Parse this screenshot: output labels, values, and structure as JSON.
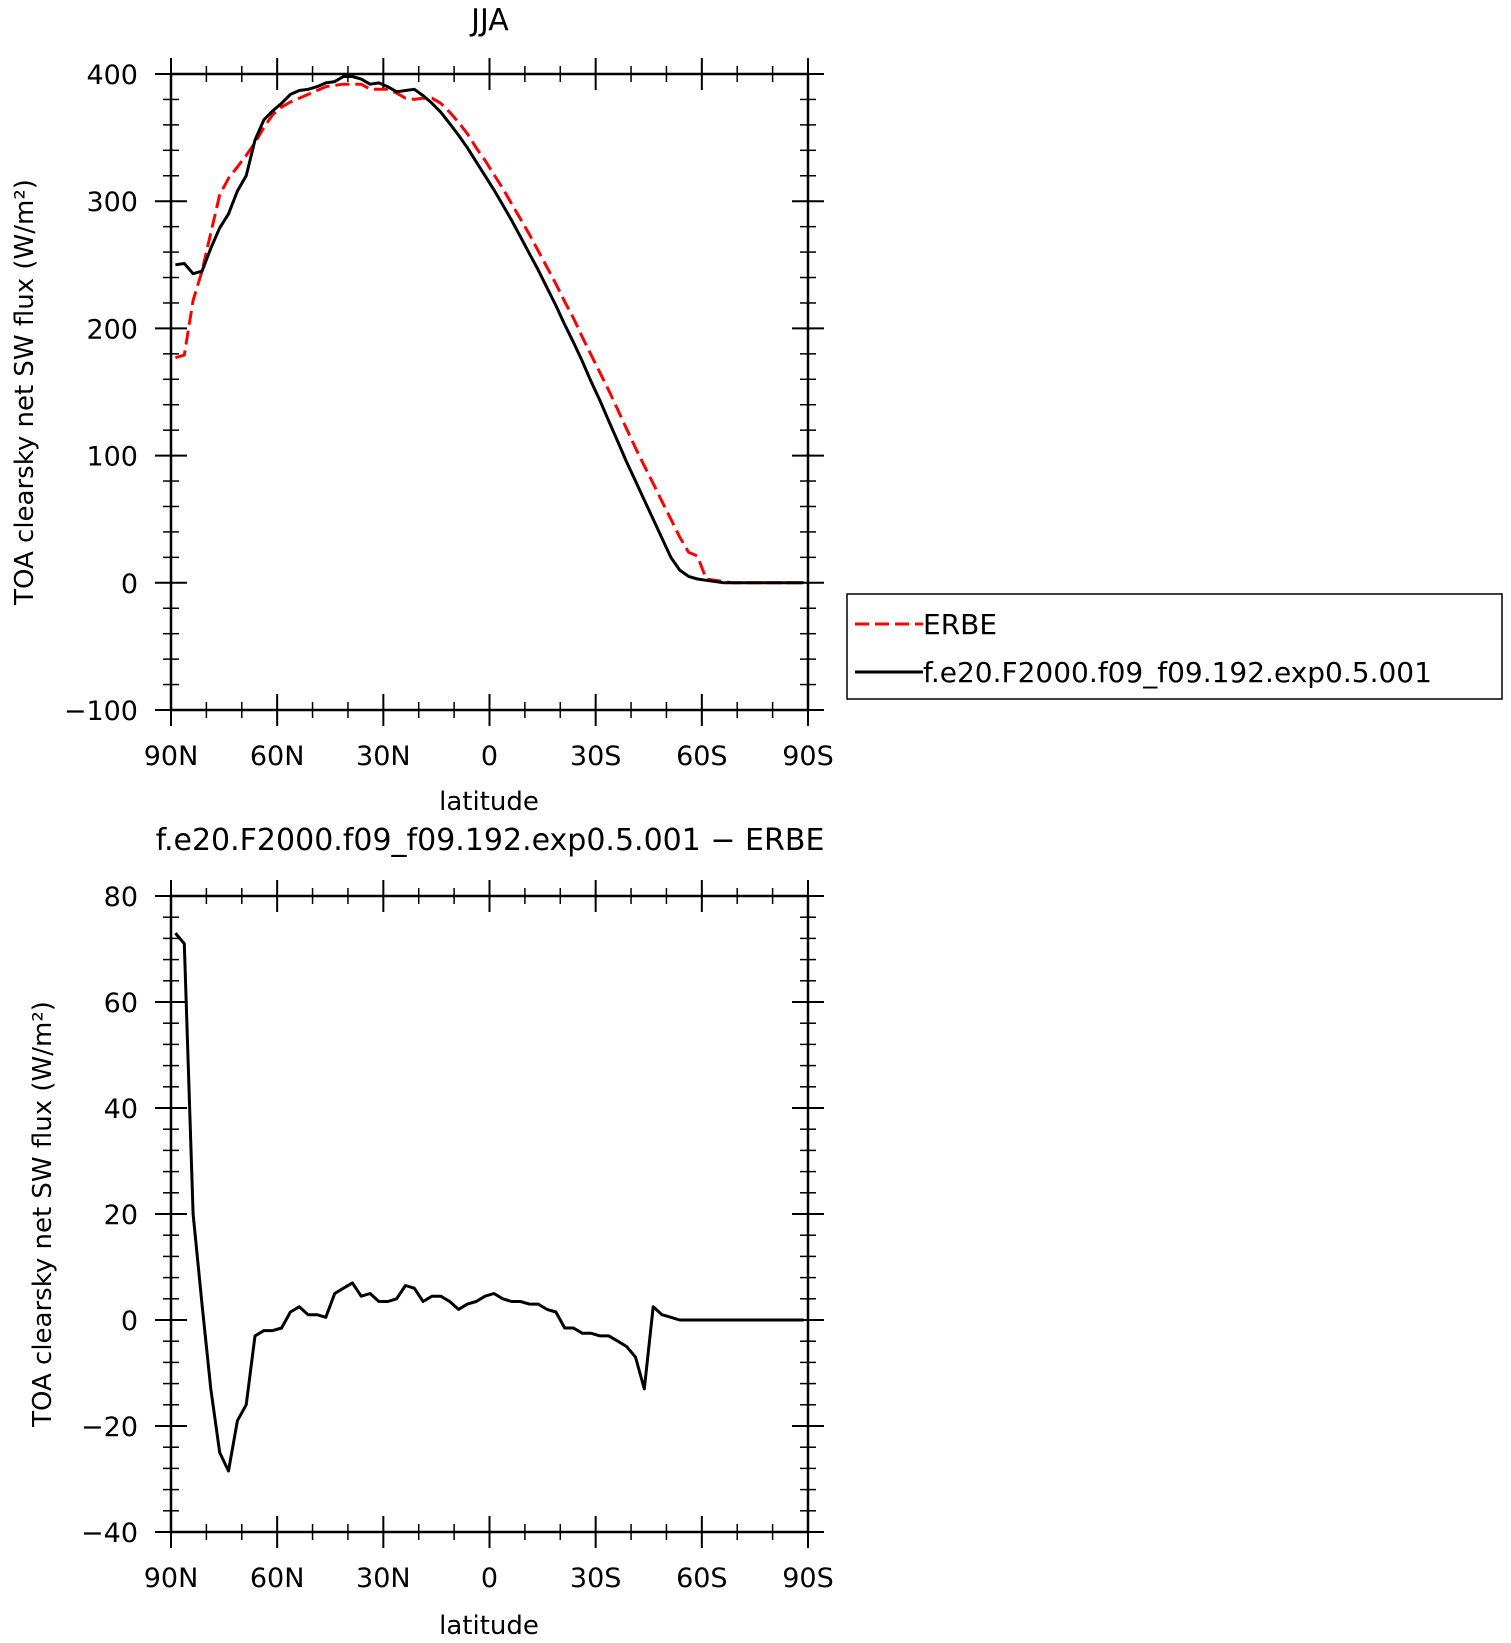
{
  "chart_data": [
    {
      "type": "line",
      "title": "JJA",
      "xlabel": "latitude",
      "ylabel": "TOA clearsky net SW flux (W/m²)",
      "xlim": [
        90,
        -90
      ],
      "ylim": [
        -100,
        400
      ],
      "xticks": [
        90,
        60,
        30,
        0,
        -30,
        -60,
        -90
      ],
      "xtick_labels": [
        "90N",
        "60N",
        "30N",
        "0",
        "30S",
        "60S",
        "90S"
      ],
      "yticks": [
        -100,
        0,
        100,
        200,
        300,
        400
      ],
      "ytick_labels": [
        "−100",
        "0",
        "100",
        "200",
        "300",
        "400"
      ],
      "legend": {
        "placement": "right",
        "entries": [
          "ERBE",
          "f.e20.F2000.f09_f09.192.exp0.5.001"
        ]
      },
      "series": [
        {
          "name": "ERBE",
          "color": "#ff0000",
          "style": "dashed",
          "x": [
            88.75,
            86.25,
            83.75,
            81.25,
            78.75,
            76.25,
            73.75,
            71.25,
            68.75,
            66.25,
            63.75,
            61.25,
            58.75,
            56.25,
            53.75,
            51.25,
            48.75,
            46.25,
            43.75,
            41.25,
            38.75,
            36.25,
            33.75,
            31.25,
            28.75,
            26.25,
            23.75,
            21.25,
            18.75,
            16.25,
            13.75,
            11.25,
            8.75,
            6.25,
            3.75,
            1.25,
            -1.25,
            -3.75,
            -6.25,
            -8.75,
            -11.25,
            -13.75,
            -16.25,
            -18.75,
            -21.25,
            -23.75,
            -26.25,
            -28.75,
            -31.25,
            -33.75,
            -36.25,
            -38.75,
            -41.25,
            -43.75,
            -46.25,
            -48.75,
            -51.25,
            -53.75,
            -56.25,
            -58.75,
            -61.25,
            -63.75,
            -66.25,
            -68.75,
            -71.25,
            -73.75,
            -76.25,
            -78.75,
            -81.25,
            -83.75,
            -86.25,
            -88.75
          ],
          "y": [
            177,
            179,
            222,
            245,
            275,
            305,
            318,
            327,
            336,
            346,
            358,
            368,
            374,
            378,
            381,
            384,
            387,
            390,
            391,
            392,
            392,
            392,
            388,
            388,
            388,
            385,
            381,
            380,
            381,
            381,
            377,
            370,
            362,
            353,
            342,
            332,
            321,
            310,
            298,
            286,
            274,
            261,
            248,
            235,
            221,
            208,
            193,
            179,
            165,
            151,
            136,
            121,
            106,
            92,
            78,
            64,
            50,
            36,
            24,
            21,
            3,
            2,
            1,
            0,
            0,
            0,
            0,
            0,
            0,
            0,
            0,
            0
          ]
        },
        {
          "name": "f.e20.F2000.f09_f09.192.exp0.5.001",
          "color": "#000000",
          "style": "solid",
          "x": [
            88.75,
            86.25,
            83.75,
            81.25,
            78.75,
            76.25,
            73.75,
            71.25,
            68.75,
            66.25,
            63.75,
            61.25,
            58.75,
            56.25,
            53.75,
            51.25,
            48.75,
            46.25,
            43.75,
            41.25,
            38.75,
            36.25,
            33.75,
            31.25,
            28.75,
            26.25,
            23.75,
            21.25,
            18.75,
            16.25,
            13.75,
            11.25,
            8.75,
            6.25,
            3.75,
            1.25,
            -1.25,
            -3.75,
            -6.25,
            -8.75,
            -11.25,
            -13.75,
            -16.25,
            -18.75,
            -21.25,
            -23.75,
            -26.25,
            -28.75,
            -31.25,
            -33.75,
            -36.25,
            -38.75,
            -41.25,
            -43.75,
            -46.25,
            -48.75,
            -51.25,
            -53.75,
            -56.25,
            -58.75,
            -61.25,
            -63.75,
            -66.25,
            -68.75,
            -71.25,
            -73.75,
            -76.25,
            -78.75,
            -81.25,
            -83.75,
            -86.25,
            -88.75
          ],
          "y": [
            250,
            251,
            243,
            245,
            263,
            279,
            290,
            308,
            320,
            348,
            364,
            371,
            377,
            384,
            387,
            388,
            390,
            393,
            394,
            398,
            398,
            396,
            392,
            393,
            390,
            386,
            387,
            388,
            383,
            377,
            370,
            361,
            352,
            342,
            331,
            320,
            309,
            297,
            285,
            272,
            259,
            246,
            232,
            218,
            203,
            189,
            174,
            158,
            143,
            127,
            111,
            95,
            80,
            65,
            50,
            35,
            20,
            10,
            5,
            3,
            2,
            1,
            0,
            0,
            0,
            0,
            0,
            0,
            0,
            0,
            0,
            0
          ]
        }
      ]
    },
    {
      "type": "line",
      "title": "f.e20.F2000.f09_f09.192.exp0.5.001 − ERBE",
      "xlabel": "latitude",
      "ylabel": "TOA clearsky net SW flux (W/m²)",
      "xlim": [
        90,
        -90
      ],
      "ylim": [
        -40,
        80
      ],
      "xticks": [
        90,
        60,
        30,
        0,
        -30,
        -60,
        -90
      ],
      "xtick_labels": [
        "90N",
        "60N",
        "30N",
        "0",
        "30S",
        "60S",
        "90S"
      ],
      "yticks": [
        -40,
        -20,
        0,
        20,
        40,
        60,
        80
      ],
      "ytick_labels": [
        "−40",
        "−20",
        "0",
        "20",
        "40",
        "60",
        "80"
      ],
      "series": [
        {
          "color": "#000000",
          "style": "solid",
          "x": [
            88.75,
            86.25,
            83.75,
            81.25,
            78.75,
            76.25,
            73.75,
            71.25,
            68.75,
            66.25,
            63.75,
            61.25,
            58.75,
            56.25,
            53.75,
            51.25,
            48.75,
            46.25,
            43.75,
            41.25,
            38.75,
            36.25,
            33.75,
            31.25,
            28.75,
            26.25,
            23.75,
            21.25,
            18.75,
            16.25,
            13.75,
            11.25,
            8.75,
            6.25,
            3.75,
            1.25,
            -1.25,
            -3.75,
            -6.25,
            -8.75,
            -11.25,
            -13.75,
            -16.25,
            -18.75,
            -21.25,
            -23.75,
            -26.25,
            -28.75,
            -31.25,
            -33.75,
            -36.25,
            -38.75,
            -41.25,
            -43.75,
            -46.25,
            -48.75,
            -51.25,
            -53.75,
            -56.25,
            -58.75,
            -61.25,
            -63.75,
            -66.25,
            -68.75,
            -71.25,
            -73.75,
            -76.25,
            -78.75,
            -81.25,
            -83.75,
            -86.25,
            -88.75
          ],
          "y": [
            73,
            71,
            20,
            3,
            -13,
            -25,
            -28.5,
            -19,
            -16,
            -3,
            -2,
            -2,
            -1.5,
            1.5,
            2.5,
            1,
            1,
            0.5,
            5,
            6,
            7,
            4.5,
            5,
            3.5,
            3.5,
            4,
            6.5,
            6,
            3.5,
            4.5,
            4.5,
            3.5,
            2,
            3,
            3.5,
            4.5,
            5,
            4,
            3.5,
            3.5,
            3,
            3,
            2,
            1.5,
            -1.5,
            -1.5,
            -2.5,
            -2.5,
            -3,
            -3,
            -4,
            -5,
            -7,
            -13,
            2.5,
            1,
            0.5,
            0,
            0,
            0,
            0,
            0,
            0,
            0,
            0,
            0,
            0,
            0,
            0,
            0,
            0,
            0
          ]
        }
      ]
    }
  ]
}
